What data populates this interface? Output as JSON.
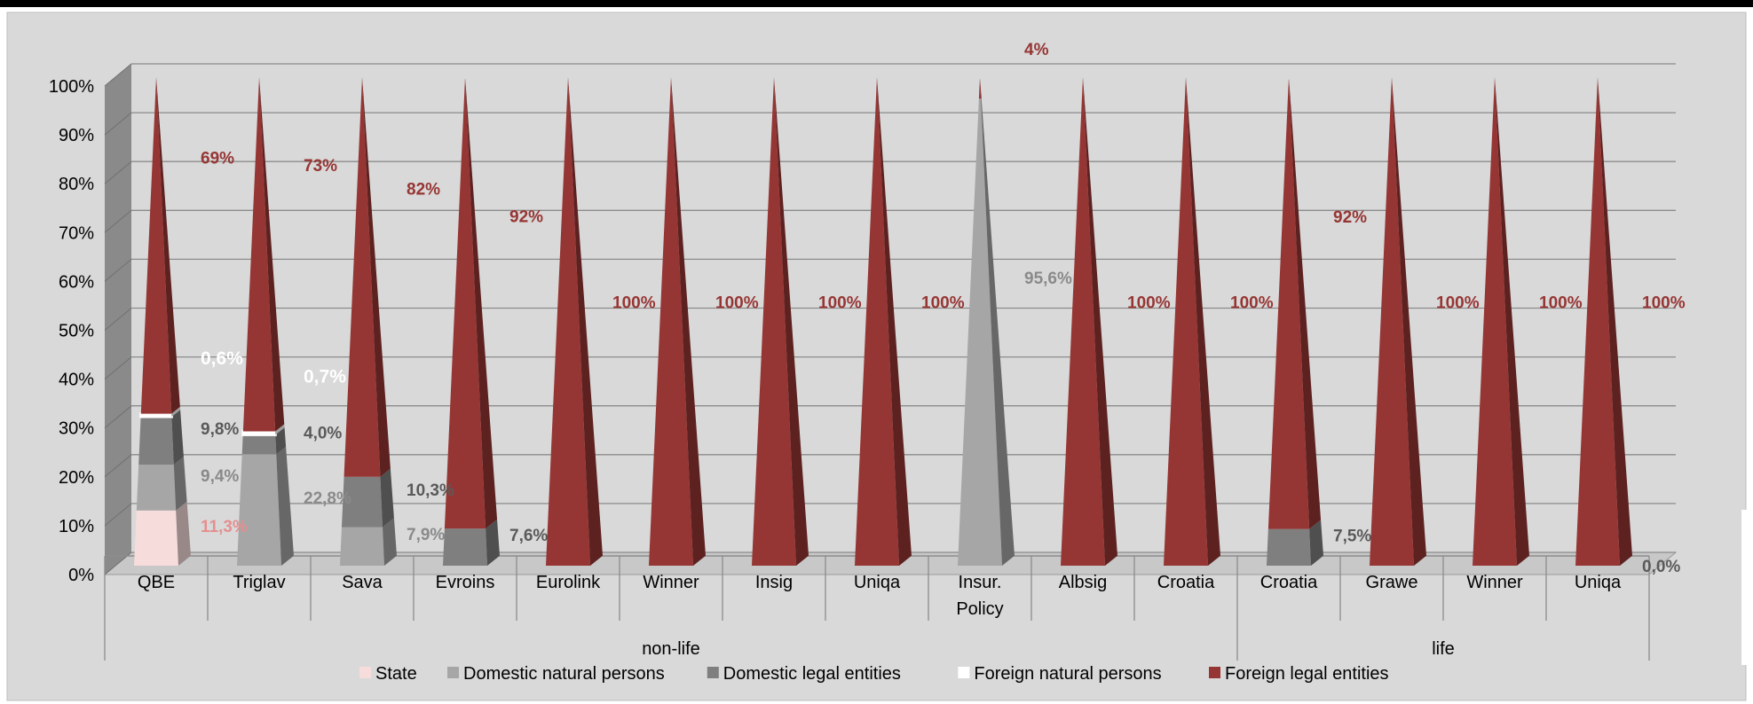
{
  "chart_data": {
    "type": "bar",
    "stacked": true,
    "percent": true,
    "style": "3d-pyramid",
    "categories": [
      "QBE",
      "Triglav",
      "Sava",
      "Evroins",
      "Eurolink",
      "Winner",
      "Insig",
      "Uniqa",
      "Insur. Policy",
      "Albsig",
      "Croatia",
      "Croatia",
      "Grawe",
      "Winner",
      "Uniqa"
    ],
    "groups": [
      {
        "label": "non-life",
        "count": 11
      },
      {
        "label": "life",
        "count": 4
      }
    ],
    "series": [
      {
        "name": "State",
        "color": "#f7dcdc",
        "values": [
          11.3,
          0,
          0,
          0,
          0,
          0,
          0,
          0,
          0,
          0,
          0,
          0,
          0,
          0,
          0
        ],
        "labels": [
          "11,3%",
          "",
          "",
          "",
          "",
          "",
          "",
          "",
          "",
          "",
          "",
          "",
          "",
          "",
          ""
        ]
      },
      {
        "name": "Domestic natural persons",
        "color": "#a6a6a6",
        "values": [
          9.4,
          22.8,
          7.9,
          0,
          0,
          0,
          0,
          0,
          95.6,
          0,
          0,
          0,
          0,
          0,
          0
        ],
        "labels": [
          "9,4%",
          "22,8%",
          "7,9%",
          "",
          "",
          "",
          "",
          "",
          "95,6%",
          "",
          "",
          "",
          "",
          "",
          ""
        ]
      },
      {
        "name": "Domestic legal entities",
        "color": "#7f7f7f",
        "values": [
          9.8,
          4.0,
          10.3,
          7.6,
          0,
          0,
          0,
          0,
          0,
          0,
          0,
          7.5,
          0,
          0,
          0
        ],
        "labels": [
          "9,8%",
          "4,0%",
          "10,3%",
          "7,6%",
          "",
          "",
          "",
          "",
          "",
          "",
          "",
          "7,5%",
          "",
          "",
          "0,0%"
        ]
      },
      {
        "name": "Foreign natural persons",
        "color": "#ffffff",
        "values": [
          0.6,
          0.7,
          0,
          0,
          0,
          0,
          0,
          0,
          0,
          0,
          0,
          0,
          0,
          0,
          0
        ],
        "labels": [
          "0,6%",
          "0,7%",
          "",
          "",
          "",
          "",
          "",
          "",
          "",
          "",
          "",
          "",
          "",
          "",
          ""
        ]
      },
      {
        "name": "Foreign legal entities",
        "color": "#963634",
        "values": [
          69,
          73,
          82,
          92,
          100,
          100,
          100,
          100,
          4,
          100,
          100,
          92,
          100,
          100,
          100
        ],
        "labels": [
          "69%",
          "73%",
          "82%",
          "92%",
          "100%",
          "100%",
          "100%",
          "100%",
          "4%",
          "100%",
          "100%",
          "92%",
          "100%",
          "100%",
          "100%"
        ]
      }
    ],
    "yticks": [
      "0%",
      "10%",
      "20%",
      "30%",
      "40%",
      "50%",
      "60%",
      "70%",
      "80%",
      "90%",
      "100%"
    ],
    "ylim": [
      0,
      100
    ],
    "grid": true,
    "legend": "bottom",
    "colors": {
      "background": "#d9d9d9",
      "grid": "#8c8c8c",
      "wall": "#8a8a8a",
      "floor": "#c8c8c8",
      "axis_text": "#000000"
    }
  }
}
